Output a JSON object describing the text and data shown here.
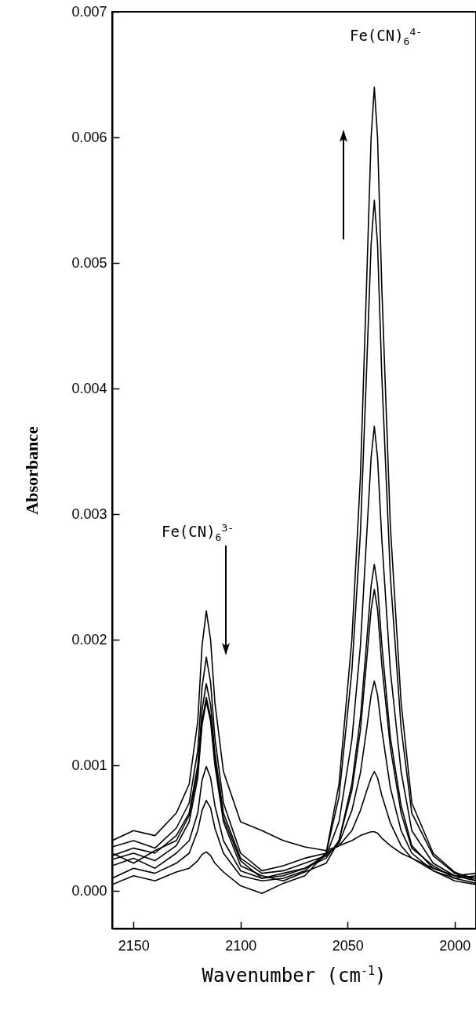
{
  "chart_data": {
    "type": "line",
    "xlabel": "Wavenumber (cm$^{-1}$)",
    "ylabel": "Absorbance",
    "xlim": [
      2160,
      1990
    ],
    "xticks": [
      2150,
      2100,
      2050,
      2000
    ],
    "ylim": [
      -0.0003,
      0.007
    ],
    "yticks": [
      {
        "value": 0,
        "label": "0.000"
      },
      0.001,
      0.002,
      0.003,
      0.004,
      0.005,
      0.006,
      0.007
    ],
    "x": [
      2160,
      2150,
      2140,
      2130,
      2124,
      2120,
      2118,
      2116,
      2114,
      2112,
      2108,
      2100,
      2090,
      2080,
      2070,
      2060,
      2054,
      2048,
      2044,
      2041,
      2039,
      2037.5,
      2036,
      2034,
      2030,
      2025,
      2020,
      2010,
      2000,
      1990
    ],
    "annotations": [
      "Fe(CN)$_{6}$$^{4-}$",
      "Fe(CN)$_{6}$$^{3-}$"
    ],
    "series": [
      {
        "color": "#000000",
        "values": [
          5e-05,
          0.00012,
          8e-05,
          0.00015,
          0.00018,
          0.00024,
          0.00029,
          0.00031,
          0.00028,
          0.00022,
          0.00015,
          4e-05,
          -2e-05,
          6e-05,
          0.00012,
          0.0003,
          0.00085,
          0.002,
          0.0033,
          0.0049,
          0.006,
          0.0064,
          0.006,
          0.0048,
          0.0029,
          0.0015,
          0.0007,
          0.0003,
          0.00015,
          8e-05
        ]
      },
      {
        "color": "#000000",
        "values": [
          0.0001,
          0.00018,
          0.00014,
          0.00022,
          0.0003,
          0.00048,
          0.00064,
          0.00072,
          0.00066,
          0.0005,
          0.0003,
          0.00012,
          8e-05,
          0.0001,
          0.00016,
          0.0003,
          0.00075,
          0.00175,
          0.00285,
          0.0042,
          0.00515,
          0.0055,
          0.00515,
          0.0041,
          0.0025,
          0.0013,
          0.00062,
          0.00028,
          0.00014,
          0.0001
        ]
      },
      {
        "color": "#000000",
        "values": [
          0.0002,
          0.00026,
          0.00018,
          0.0003,
          0.0004,
          0.00062,
          0.00088,
          0.00099,
          0.0009,
          0.00068,
          0.0004,
          0.00016,
          0.0001,
          0.00012,
          0.00018,
          0.00028,
          0.00055,
          0.0012,
          0.00195,
          0.00285,
          0.00345,
          0.0037,
          0.00345,
          0.0028,
          0.00175,
          0.00095,
          0.00048,
          0.00022,
          0.00012,
          0.0001
        ]
      },
      {
        "color": "#000000",
        "values": [
          0.00025,
          0.0003,
          0.00024,
          0.00036,
          0.00055,
          0.0009,
          0.00132,
          0.00151,
          0.00135,
          0.001,
          0.00055,
          0.0002,
          0.00012,
          8e-05,
          0.00015,
          0.00022,
          0.0004,
          0.00085,
          0.00138,
          0.002,
          0.00243,
          0.0026,
          0.00243,
          0.00196,
          0.00122,
          0.00068,
          0.00036,
          0.00018,
          0.00012,
          8e-05
        ]
      },
      {
        "color": "#000000",
        "values": [
          0.0003,
          0.00022,
          0.00032,
          0.0004,
          0.0006,
          0.00095,
          0.00135,
          0.00154,
          0.00138,
          0.00104,
          0.00058,
          0.00024,
          0.0001,
          0.00014,
          0.00018,
          0.00026,
          0.0004,
          0.0008,
          0.00128,
          0.00185,
          0.00224,
          0.0024,
          0.00224,
          0.0018,
          0.00114,
          0.00062,
          0.00034,
          0.0002,
          0.0001,
          6e-05
        ]
      },
      {
        "color": "#000000",
        "values": [
          0.00028,
          0.00034,
          0.0003,
          0.00044,
          0.00062,
          0.001,
          0.00144,
          0.00165,
          0.00148,
          0.0011,
          0.00062,
          0.00026,
          0.00014,
          0.00016,
          0.00022,
          0.00028,
          0.00038,
          0.00064,
          0.00094,
          0.0013,
          0.00156,
          0.00167,
          0.00156,
          0.00128,
          0.00082,
          0.00048,
          0.0003,
          0.00016,
          8e-05,
          5e-05
        ]
      },
      {
        "color": "#000000",
        "values": [
          0.00035,
          0.0004,
          0.00034,
          0.0005,
          0.0007,
          0.00112,
          0.00162,
          0.00186,
          0.00166,
          0.00122,
          0.0007,
          0.0003,
          0.00016,
          0.0002,
          0.00026,
          0.0003,
          0.00036,
          0.00048,
          0.00064,
          0.0008,
          0.0009,
          0.00095,
          0.0009,
          0.00076,
          0.00054,
          0.00036,
          0.00026,
          0.00016,
          0.0001,
          0.00012
        ]
      },
      {
        "color": "#000000",
        "values": [
          0.0004,
          0.00048,
          0.00044,
          0.00062,
          0.00085,
          0.00135,
          0.00195,
          0.00223,
          0.002,
          0.0015,
          0.00095,
          0.00055,
          0.00048,
          0.0004,
          0.00035,
          0.00032,
          0.00036,
          0.0004,
          0.00044,
          0.00046,
          0.00047,
          0.00047,
          0.00046,
          0.00042,
          0.00036,
          0.0003,
          0.00026,
          0.00018,
          0.00012,
          0.00014
        ]
      }
    ]
  }
}
